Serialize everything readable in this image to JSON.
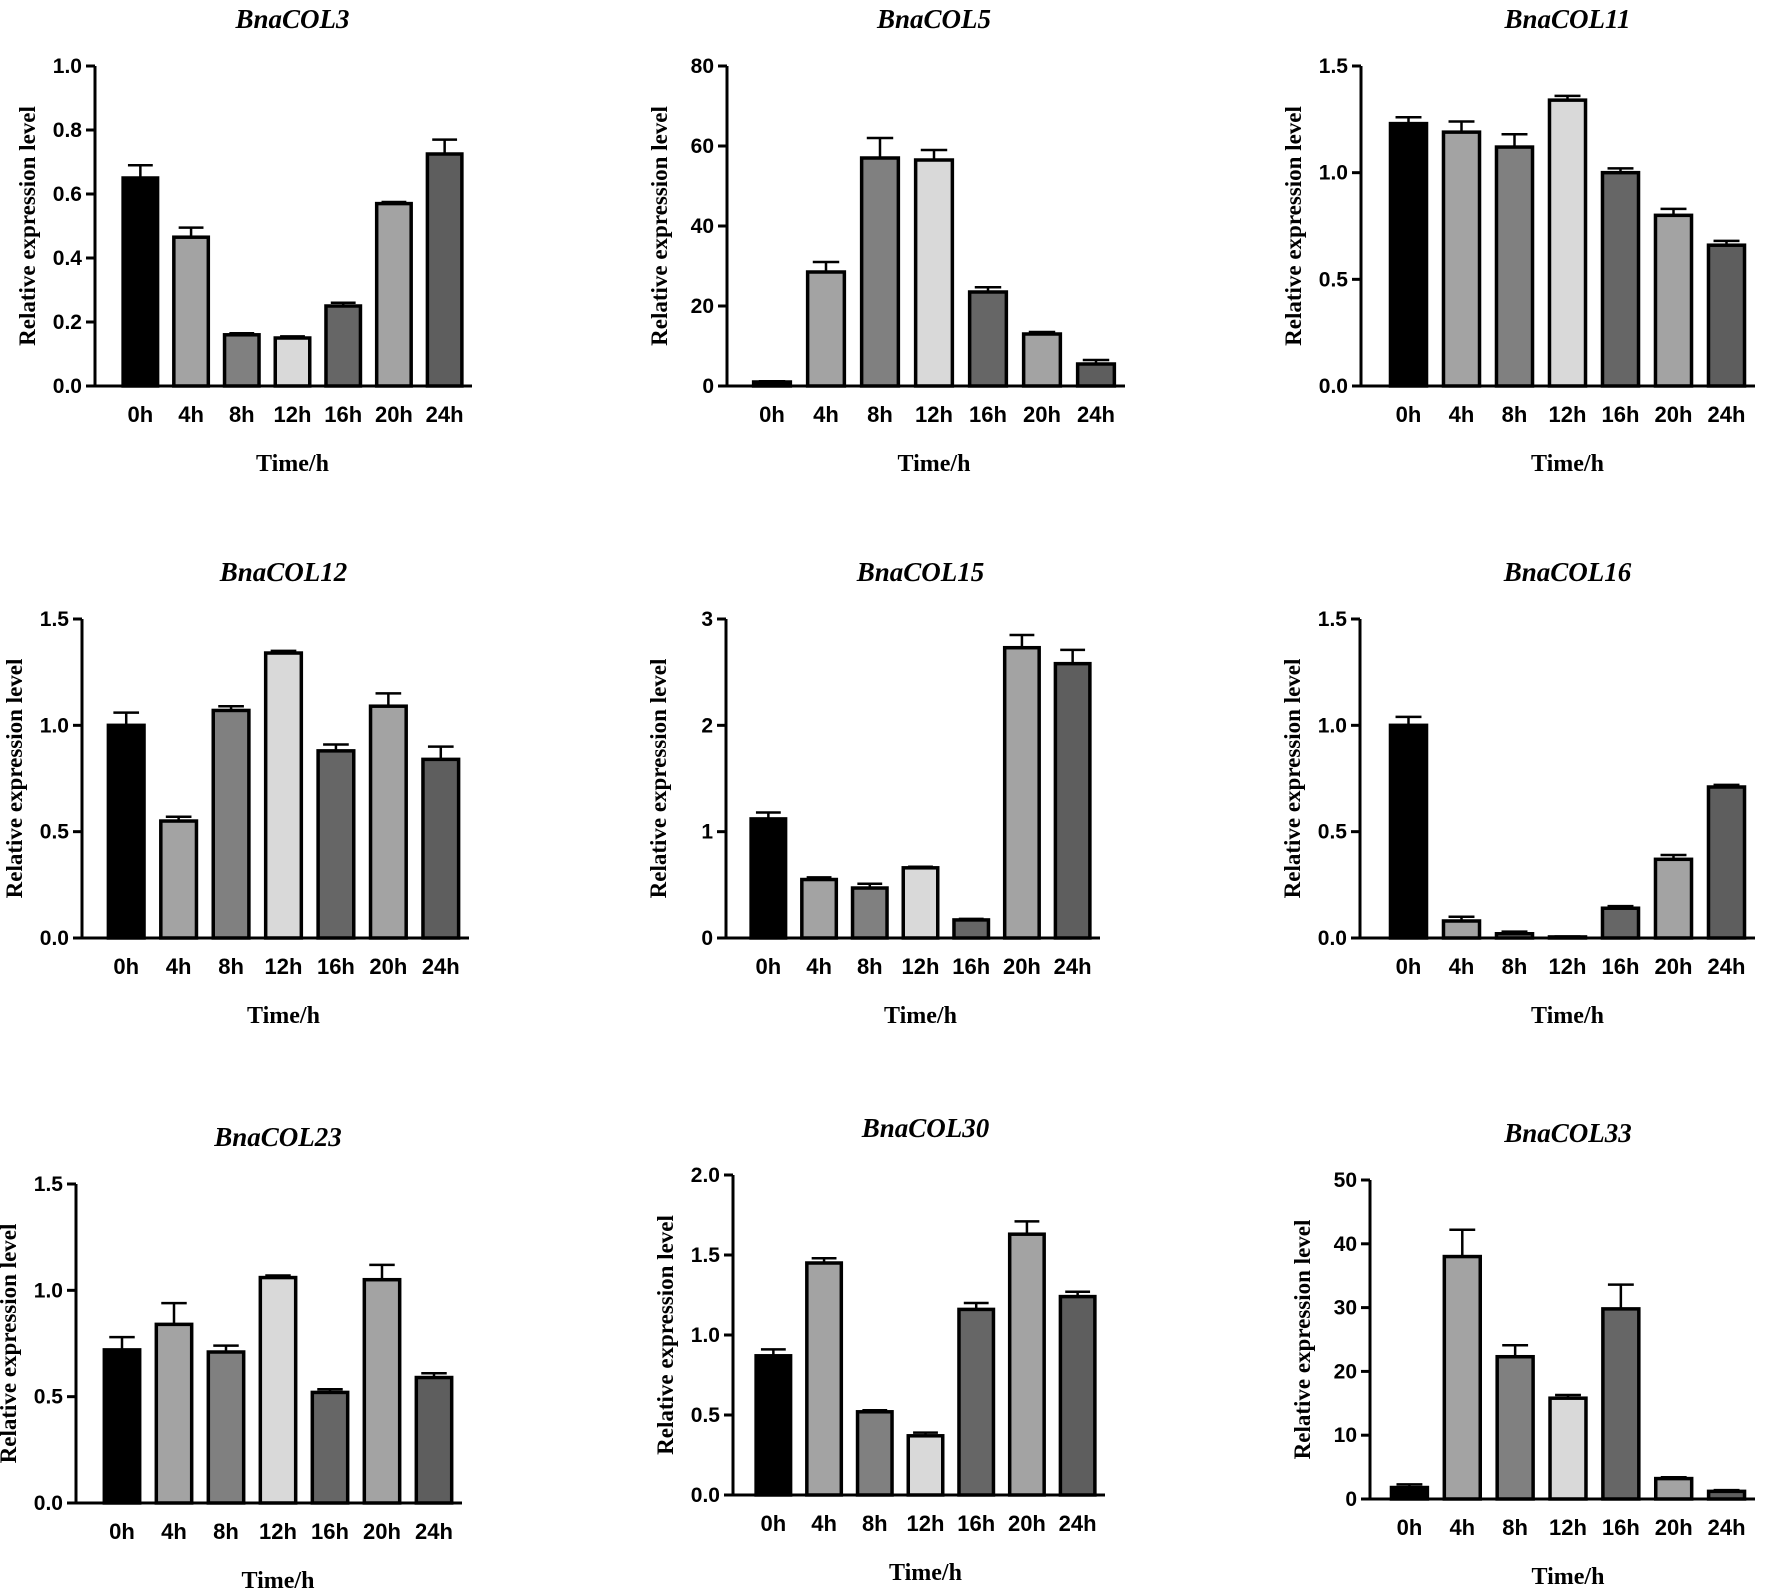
{
  "colors": {
    "0h": "#000000",
    "4h": "#a3a3a3",
    "8h": "#808080",
    "12h": "#d9d9d9",
    "16h": "#666666",
    "20h": "#a3a3a3",
    "24h": "#5e5e5e"
  },
  "chart_data": [
    {
      "type": "bar",
      "title": "BnaCOL3",
      "xlabel": "Time/h",
      "ylabel": "Relative expression level",
      "categories": [
        "0h",
        "4h",
        "8h",
        "12h",
        "16h",
        "20h",
        "24h"
      ],
      "values": [
        0.65,
        0.465,
        0.16,
        0.15,
        0.25,
        0.57,
        0.725
      ],
      "errors": [
        0.04,
        0.03,
        0.005,
        0.005,
        0.01,
        0.005,
        0.045
      ],
      "ylim": [
        0,
        1.0
      ],
      "yticks": [
        0,
        0.2,
        0.4,
        0.6,
        0.8,
        1.0
      ],
      "ytick_labels": [
        "0.0",
        "0.2",
        "0.4",
        "0.6",
        "0.8",
        "1.0"
      ]
    },
    {
      "type": "bar",
      "title": "BnaCOL5",
      "xlabel": "Time/h",
      "ylabel": "Relative expression level",
      "categories": [
        "0h",
        "4h",
        "8h",
        "12h",
        "16h",
        "20h",
        "24h"
      ],
      "values": [
        1,
        28.5,
        57,
        56.5,
        23.5,
        13,
        5.5
      ],
      "errors": [
        0.2,
        2.5,
        5,
        2.5,
        1.2,
        0.5,
        1
      ],
      "ylim": [
        0,
        80
      ],
      "yticks": [
        0,
        20,
        40,
        60,
        80
      ],
      "ytick_labels": [
        "0",
        "20",
        "40",
        "60",
        "80"
      ]
    },
    {
      "type": "bar",
      "title": "BnaCOL11",
      "xlabel": "Time/h",
      "ylabel": "Relative expression level",
      "categories": [
        "0h",
        "4h",
        "8h",
        "12h",
        "16h",
        "20h",
        "24h"
      ],
      "values": [
        1.23,
        1.19,
        1.12,
        1.34,
        1.0,
        0.8,
        0.66
      ],
      "errors": [
        0.03,
        0.05,
        0.06,
        0.02,
        0.02,
        0.03,
        0.02
      ],
      "ylim": [
        0,
        1.5
      ],
      "yticks": [
        0,
        0.5,
        1.0,
        1.5
      ],
      "ytick_labels": [
        "0.0",
        "0.5",
        "1.0",
        "1.5"
      ]
    },
    {
      "type": "bar",
      "title": "BnaCOL12",
      "xlabel": "Time/h",
      "ylabel": "Relative expression level",
      "categories": [
        "0h",
        "4h",
        "8h",
        "12h",
        "16h",
        "20h",
        "24h"
      ],
      "values": [
        1.0,
        0.55,
        1.07,
        1.34,
        0.88,
        1.09,
        0.84
      ],
      "errors": [
        0.06,
        0.02,
        0.02,
        0.01,
        0.03,
        0.06,
        0.06
      ],
      "ylim": [
        0,
        1.5
      ],
      "yticks": [
        0,
        0.5,
        1.0,
        1.5
      ],
      "ytick_labels": [
        "0.0",
        "0.5",
        "1.0",
        "1.5"
      ]
    },
    {
      "type": "bar",
      "title": "BnaCOL15",
      "xlabel": "Time/h",
      "ylabel": "Relative expression level",
      "categories": [
        "0h",
        "4h",
        "8h",
        "12h",
        "16h",
        "20h",
        "24h"
      ],
      "values": [
        1.12,
        0.55,
        0.47,
        0.66,
        0.17,
        2.73,
        2.58
      ],
      "errors": [
        0.06,
        0.02,
        0.04,
        0.01,
        0.01,
        0.12,
        0.13
      ],
      "ylim": [
        0,
        3
      ],
      "yticks": [
        0,
        1,
        2,
        3
      ],
      "ytick_labels": [
        "0",
        "1",
        "2",
        "3"
      ]
    },
    {
      "type": "bar",
      "title": "BnaCOL16",
      "xlabel": "Time/h",
      "ylabel": "Relative expression level",
      "categories": [
        "0h",
        "4h",
        "8h",
        "12h",
        "16h",
        "20h",
        "24h"
      ],
      "values": [
        1.0,
        0.08,
        0.02,
        0.005,
        0.14,
        0.37,
        0.71
      ],
      "errors": [
        0.04,
        0.02,
        0.01,
        0.002,
        0.01,
        0.02,
        0.01
      ],
      "ylim": [
        0,
        1.5
      ],
      "yticks": [
        0,
        0.5,
        1.0,
        1.5
      ],
      "ytick_labels": [
        "0.0",
        "0.5",
        "1.0",
        "1.5"
      ]
    },
    {
      "type": "bar",
      "title": "BnaCOL23",
      "xlabel": "Time/h",
      "ylabel": "Relative expression level",
      "categories": [
        "0h",
        "4h",
        "8h",
        "12h",
        "16h",
        "20h",
        "24h"
      ],
      "values": [
        0.72,
        0.84,
        0.71,
        1.06,
        0.52,
        1.05,
        0.59
      ],
      "errors": [
        0.06,
        0.1,
        0.03,
        0.01,
        0.015,
        0.07,
        0.02
      ],
      "ylim": [
        0,
        1.5
      ],
      "yticks": [
        0,
        0.5,
        1.0,
        1.5
      ],
      "ytick_labels": [
        "0.0",
        "0.5",
        "1.0",
        "1.5"
      ]
    },
    {
      "type": "bar",
      "title": "BnaCOL30",
      "xlabel": "Time/h",
      "ylabel": "Relative expression level",
      "categories": [
        "0h",
        "4h",
        "8h",
        "12h",
        "16h",
        "20h",
        "24h"
      ],
      "values": [
        0.87,
        1.45,
        0.52,
        0.37,
        1.16,
        1.63,
        1.24
      ],
      "errors": [
        0.04,
        0.03,
        0.01,
        0.02,
        0.04,
        0.08,
        0.03
      ],
      "ylim": [
        0,
        2.0
      ],
      "yticks": [
        0,
        0.5,
        1.0,
        1.5,
        2.0
      ],
      "ytick_labels": [
        "0.0",
        "0.5",
        "1.0",
        "1.5",
        "2.0"
      ]
    },
    {
      "type": "bar",
      "title": "BnaCOL33",
      "xlabel": "Time/h",
      "ylabel": "Relative expression level",
      "categories": [
        "0h",
        "4h",
        "8h",
        "12h",
        "16h",
        "20h",
        "24h"
      ],
      "values": [
        1.8,
        38,
        22.3,
        15.8,
        29.8,
        3.2,
        1.2
      ],
      "errors": [
        0.5,
        4.2,
        1.8,
        0.5,
        3.8,
        0.2,
        0.2
      ],
      "ylim": [
        0,
        50
      ],
      "yticks": [
        0,
        10,
        20,
        30,
        40,
        50
      ],
      "ytick_labels": [
        "0",
        "10",
        "20",
        "30",
        "40",
        "50"
      ]
    }
  ]
}
